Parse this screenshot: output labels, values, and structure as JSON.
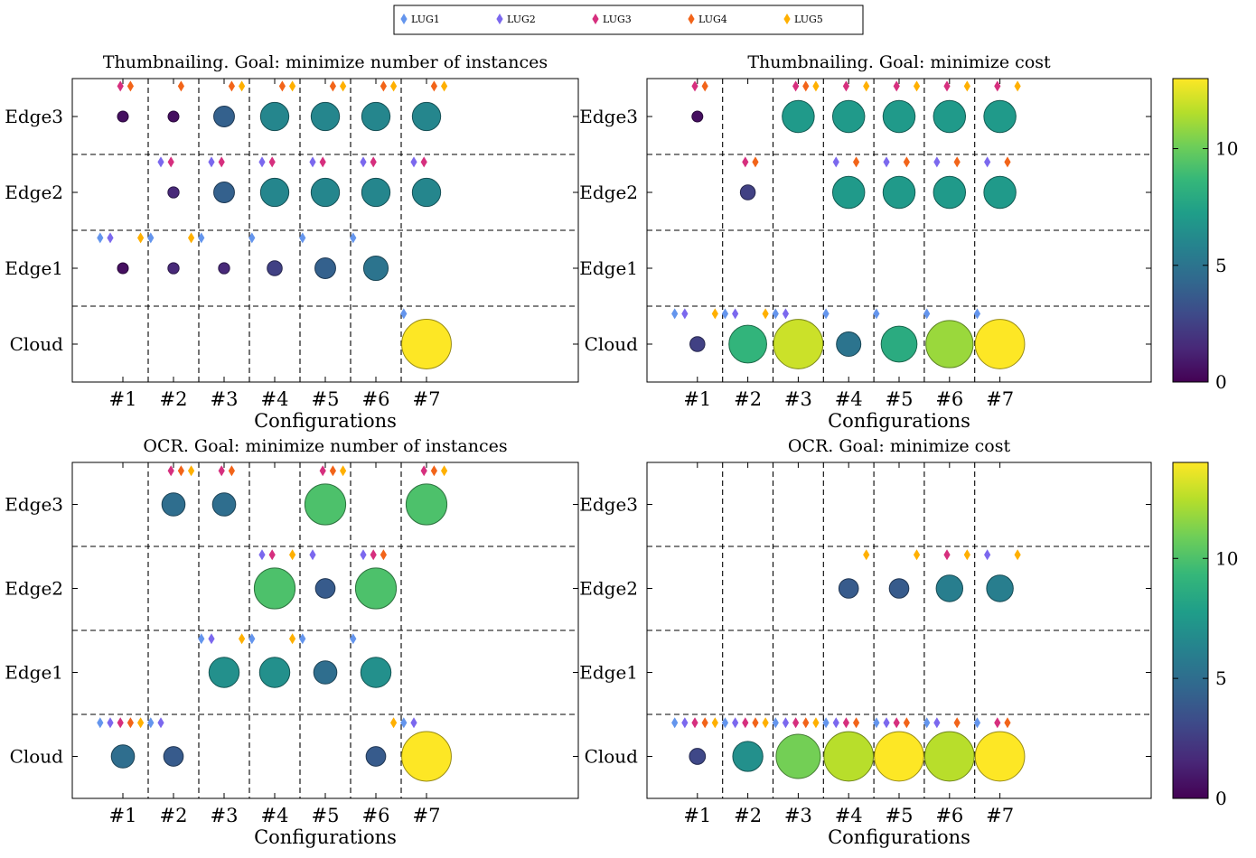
{
  "legend": [
    {
      "name": "LUG1",
      "color": "#6495ED"
    },
    {
      "name": "LUG2",
      "color": "#7B68EE"
    },
    {
      "name": "LUG3",
      "color": "#D62F7E"
    },
    {
      "name": "LUG4",
      "color": "#F26419"
    },
    {
      "name": "LUG5",
      "color": "#FFB000"
    }
  ],
  "chart_data": [
    {
      "type": "scatter",
      "title": "Thumbnailing. Goal: minimize number of instances",
      "xlabel": "Configurations",
      "ylabel": "",
      "categories": [
        "#1",
        "#2",
        "#3",
        "#4",
        "#5",
        "#6",
        "#7"
      ],
      "rows": [
        "Cloud",
        "Edge1",
        "Edge2",
        "Edge3"
      ],
      "colorbar": {
        "min": 0,
        "max": 13,
        "ticks": [
          0,
          5,
          10
        ]
      },
      "bubbles": [
        {
          "config": "#1",
          "row": "Edge3",
          "value": 0.5
        },
        {
          "config": "#2",
          "row": "Edge3",
          "value": 0.5
        },
        {
          "config": "#3",
          "row": "Edge3",
          "value": 4
        },
        {
          "config": "#4",
          "row": "Edge3",
          "value": 6
        },
        {
          "config": "#5",
          "row": "Edge3",
          "value": 6
        },
        {
          "config": "#6",
          "row": "Edge3",
          "value": 6
        },
        {
          "config": "#7",
          "row": "Edge3",
          "value": 6
        },
        {
          "config": "#2",
          "row": "Edge2",
          "value": 1.5
        },
        {
          "config": "#3",
          "row": "Edge2",
          "value": 4
        },
        {
          "config": "#4",
          "row": "Edge2",
          "value": 6
        },
        {
          "config": "#5",
          "row": "Edge2",
          "value": 6
        },
        {
          "config": "#6",
          "row": "Edge2",
          "value": 6
        },
        {
          "config": "#7",
          "row": "Edge2",
          "value": 6
        },
        {
          "config": "#1",
          "row": "Edge1",
          "value": 0.5
        },
        {
          "config": "#2",
          "row": "Edge1",
          "value": 1.5
        },
        {
          "config": "#3",
          "row": "Edge1",
          "value": 1.5
        },
        {
          "config": "#4",
          "row": "Edge1",
          "value": 2.5
        },
        {
          "config": "#5",
          "row": "Edge1",
          "value": 4
        },
        {
          "config": "#6",
          "row": "Edge1",
          "value": 5
        },
        {
          "config": "#7",
          "row": "Cloud",
          "value": 13
        }
      ],
      "markers": [
        {
          "config": "#1",
          "row": "Edge3",
          "lugs": [
            3,
            4
          ]
        },
        {
          "config": "#2",
          "row": "Edge3",
          "lugs": [
            4
          ]
        },
        {
          "config": "#3",
          "row": "Edge3",
          "lugs": [
            4,
            5
          ]
        },
        {
          "config": "#4",
          "row": "Edge3",
          "lugs": [
            4,
            5
          ]
        },
        {
          "config": "#5",
          "row": "Edge3",
          "lugs": [
            4,
            5
          ]
        },
        {
          "config": "#6",
          "row": "Edge3",
          "lugs": [
            4,
            5
          ]
        },
        {
          "config": "#7",
          "row": "Edge3",
          "lugs": [
            4,
            5
          ]
        },
        {
          "config": "#2",
          "row": "Edge2",
          "lugs": [
            2,
            3
          ]
        },
        {
          "config": "#3",
          "row": "Edge2",
          "lugs": [
            2,
            3
          ]
        },
        {
          "config": "#4",
          "row": "Edge2",
          "lugs": [
            2,
            3
          ]
        },
        {
          "config": "#5",
          "row": "Edge2",
          "lugs": [
            2,
            3
          ]
        },
        {
          "config": "#6",
          "row": "Edge2",
          "lugs": [
            2,
            3
          ]
        },
        {
          "config": "#7",
          "row": "Edge2",
          "lugs": [
            2,
            3
          ]
        },
        {
          "config": "#1",
          "row": "Edge1",
          "lugs": [
            1,
            2,
            5
          ]
        },
        {
          "config": "#2",
          "row": "Edge1",
          "lugs": [
            1,
            5
          ]
        },
        {
          "config": "#3",
          "row": "Edge1",
          "lugs": [
            1
          ]
        },
        {
          "config": "#4",
          "row": "Edge1",
          "lugs": [
            1
          ]
        },
        {
          "config": "#5",
          "row": "Edge1",
          "lugs": [
            1
          ]
        },
        {
          "config": "#6",
          "row": "Edge1",
          "lugs": [
            1
          ]
        },
        {
          "config": "#7",
          "row": "Cloud",
          "lugs": [
            1
          ]
        }
      ]
    },
    {
      "type": "scatter",
      "title": "Thumbnailing. Goal: minimize cost",
      "xlabel": "Configurations",
      "ylabel": "",
      "categories": [
        "#1",
        "#2",
        "#3",
        "#4",
        "#5",
        "#6",
        "#7"
      ],
      "rows": [
        "Cloud",
        "Edge1",
        "Edge2",
        "Edge3"
      ],
      "colorbar": {
        "min": 0,
        "max": 13,
        "ticks": [
          0,
          5,
          10
        ]
      },
      "bubbles": [
        {
          "config": "#1",
          "row": "Edge3",
          "value": 0.5
        },
        {
          "config": "#3",
          "row": "Edge3",
          "value": 7
        },
        {
          "config": "#4",
          "row": "Edge3",
          "value": 7
        },
        {
          "config": "#5",
          "row": "Edge3",
          "value": 7
        },
        {
          "config": "#6",
          "row": "Edge3",
          "value": 7
        },
        {
          "config": "#7",
          "row": "Edge3",
          "value": 7
        },
        {
          "config": "#2",
          "row": "Edge2",
          "value": 2.5
        },
        {
          "config": "#4",
          "row": "Edge2",
          "value": 7
        },
        {
          "config": "#5",
          "row": "Edge2",
          "value": 7
        },
        {
          "config": "#6",
          "row": "Edge2",
          "value": 7
        },
        {
          "config": "#7",
          "row": "Edge2",
          "value": 7
        },
        {
          "config": "#1",
          "row": "Cloud",
          "value": 2.5
        },
        {
          "config": "#2",
          "row": "Cloud",
          "value": 8.5
        },
        {
          "config": "#3",
          "row": "Cloud",
          "value": 12
        },
        {
          "config": "#4",
          "row": "Cloud",
          "value": 5
        },
        {
          "config": "#5",
          "row": "Cloud",
          "value": 8
        },
        {
          "config": "#6",
          "row": "Cloud",
          "value": 11
        },
        {
          "config": "#7",
          "row": "Cloud",
          "value": 13
        }
      ],
      "markers": [
        {
          "config": "#1",
          "row": "Edge3",
          "lugs": [
            3,
            4
          ]
        },
        {
          "config": "#3",
          "row": "Edge3",
          "lugs": [
            3,
            4,
            5
          ]
        },
        {
          "config": "#4",
          "row": "Edge3",
          "lugs": [
            3,
            5
          ]
        },
        {
          "config": "#5",
          "row": "Edge3",
          "lugs": [
            3,
            5
          ]
        },
        {
          "config": "#6",
          "row": "Edge3",
          "lugs": [
            3,
            5
          ]
        },
        {
          "config": "#7",
          "row": "Edge3",
          "lugs": [
            3,
            5
          ]
        },
        {
          "config": "#2",
          "row": "Edge2",
          "lugs": [
            3,
            4
          ]
        },
        {
          "config": "#4",
          "row": "Edge2",
          "lugs": [
            2,
            4
          ]
        },
        {
          "config": "#5",
          "row": "Edge2",
          "lugs": [
            2,
            4
          ]
        },
        {
          "config": "#6",
          "row": "Edge2",
          "lugs": [
            2,
            4
          ]
        },
        {
          "config": "#7",
          "row": "Edge2",
          "lugs": [
            2,
            4
          ]
        },
        {
          "config": "#1",
          "row": "Cloud",
          "lugs": [
            1,
            2,
            5
          ]
        },
        {
          "config": "#2",
          "row": "Cloud",
          "lugs": [
            1,
            2,
            5
          ]
        },
        {
          "config": "#3",
          "row": "Cloud",
          "lugs": [
            1,
            2
          ]
        },
        {
          "config": "#4",
          "row": "Cloud",
          "lugs": [
            1
          ]
        },
        {
          "config": "#5",
          "row": "Cloud",
          "lugs": [
            1
          ]
        },
        {
          "config": "#6",
          "row": "Cloud",
          "lugs": [
            1
          ]
        },
        {
          "config": "#7",
          "row": "Cloud",
          "lugs": [
            1
          ]
        }
      ]
    },
    {
      "type": "scatter",
      "title": "OCR. Goal: minimize number of instances",
      "xlabel": "Configurations",
      "ylabel": "",
      "categories": [
        "#1",
        "#2",
        "#3",
        "#4",
        "#5",
        "#6",
        "#7"
      ],
      "rows": [
        "Cloud",
        "Edge1",
        "Edge2",
        "Edge3"
      ],
      "colorbar": {
        "min": 0,
        "max": 14,
        "ticks": [
          0,
          5,
          10
        ]
      },
      "bubbles": [
        {
          "config": "#2",
          "row": "Edge3",
          "value": 5
        },
        {
          "config": "#3",
          "row": "Edge3",
          "value": 5
        },
        {
          "config": "#5",
          "row": "Edge3",
          "value": 10
        },
        {
          "config": "#7",
          "row": "Edge3",
          "value": 10
        },
        {
          "config": "#4",
          "row": "Edge2",
          "value": 10
        },
        {
          "config": "#5",
          "row": "Edge2",
          "value": 4
        },
        {
          "config": "#6",
          "row": "Edge2",
          "value": 10
        },
        {
          "config": "#3",
          "row": "Edge1",
          "value": 7
        },
        {
          "config": "#4",
          "row": "Edge1",
          "value": 7
        },
        {
          "config": "#5",
          "row": "Edge1",
          "value": 5
        },
        {
          "config": "#6",
          "row": "Edge1",
          "value": 7
        },
        {
          "config": "#1",
          "row": "Cloud",
          "value": 5
        },
        {
          "config": "#2",
          "row": "Cloud",
          "value": 4
        },
        {
          "config": "#6",
          "row": "Cloud",
          "value": 4
        },
        {
          "config": "#7",
          "row": "Cloud",
          "value": 14
        }
      ],
      "markers": [
        {
          "config": "#2",
          "row": "Edge3",
          "lugs": [
            3,
            4,
            5
          ]
        },
        {
          "config": "#3",
          "row": "Edge3",
          "lugs": [
            3,
            4
          ]
        },
        {
          "config": "#5",
          "row": "Edge3",
          "lugs": [
            3,
            4,
            5
          ]
        },
        {
          "config": "#7",
          "row": "Edge3",
          "lugs": [
            3,
            4,
            5
          ]
        },
        {
          "config": "#4",
          "row": "Edge2",
          "lugs": [
            2,
            3,
            5
          ]
        },
        {
          "config": "#5",
          "row": "Edge2",
          "lugs": [
            2
          ]
        },
        {
          "config": "#6",
          "row": "Edge2",
          "lugs": [
            2,
            3,
            4
          ]
        },
        {
          "config": "#3",
          "row": "Edge1",
          "lugs": [
            1,
            2,
            5
          ]
        },
        {
          "config": "#4",
          "row": "Edge1",
          "lugs": [
            1,
            5
          ]
        },
        {
          "config": "#5",
          "row": "Edge1",
          "lugs": [
            1
          ]
        },
        {
          "config": "#6",
          "row": "Edge1",
          "lugs": [
            1
          ]
        },
        {
          "config": "#1",
          "row": "Cloud",
          "lugs": [
            1,
            2,
            3,
            4,
            5
          ]
        },
        {
          "config": "#2",
          "row": "Cloud",
          "lugs": [
            1,
            2
          ]
        },
        {
          "config": "#6",
          "row": "Cloud",
          "lugs": [
            5
          ]
        },
        {
          "config": "#7",
          "row": "Cloud",
          "lugs": [
            1,
            2
          ]
        }
      ]
    },
    {
      "type": "scatter",
      "title": "OCR. Goal: minimize cost",
      "xlabel": "Configurations",
      "ylabel": "",
      "categories": [
        "#1",
        "#2",
        "#3",
        "#4",
        "#5",
        "#6",
        "#7"
      ],
      "rows": [
        "Cloud",
        "Edge1",
        "Edge2",
        "Edge3"
      ],
      "colorbar": {
        "min": 0,
        "max": 14,
        "ticks": [
          0,
          5,
          10
        ]
      },
      "bubbles": [
        {
          "config": "#4",
          "row": "Edge2",
          "value": 4
        },
        {
          "config": "#5",
          "row": "Edge2",
          "value": 4
        },
        {
          "config": "#6",
          "row": "Edge2",
          "value": 6
        },
        {
          "config": "#7",
          "row": "Edge2",
          "value": 6
        },
        {
          "config": "#1",
          "row": "Cloud",
          "value": 3
        },
        {
          "config": "#2",
          "row": "Cloud",
          "value": 7
        },
        {
          "config": "#3",
          "row": "Cloud",
          "value": 11
        },
        {
          "config": "#4",
          "row": "Cloud",
          "value": 12.5
        },
        {
          "config": "#5",
          "row": "Cloud",
          "value": 14
        },
        {
          "config": "#6",
          "row": "Cloud",
          "value": 12.5
        },
        {
          "config": "#7",
          "row": "Cloud",
          "value": 14
        }
      ],
      "markers": [
        {
          "config": "#4",
          "row": "Edge2",
          "lugs": [
            5
          ]
        },
        {
          "config": "#5",
          "row": "Edge2",
          "lugs": [
            5
          ]
        },
        {
          "config": "#6",
          "row": "Edge2",
          "lugs": [
            3,
            5
          ]
        },
        {
          "config": "#7",
          "row": "Edge2",
          "lugs": [
            2,
            5
          ]
        },
        {
          "config": "#1",
          "row": "Cloud",
          "lugs": [
            1,
            2,
            3,
            4,
            5
          ]
        },
        {
          "config": "#2",
          "row": "Cloud",
          "lugs": [
            1,
            2,
            3,
            4,
            5
          ]
        },
        {
          "config": "#3",
          "row": "Cloud",
          "lugs": [
            1,
            2,
            3,
            4,
            5
          ]
        },
        {
          "config": "#4",
          "row": "Cloud",
          "lugs": [
            1,
            2,
            3,
            4
          ]
        },
        {
          "config": "#5",
          "row": "Cloud",
          "lugs": [
            1,
            2,
            3,
            4
          ]
        },
        {
          "config": "#6",
          "row": "Cloud",
          "lugs": [
            1,
            2,
            4
          ]
        },
        {
          "config": "#7",
          "row": "Cloud",
          "lugs": [
            1,
            3,
            4
          ]
        }
      ]
    }
  ]
}
